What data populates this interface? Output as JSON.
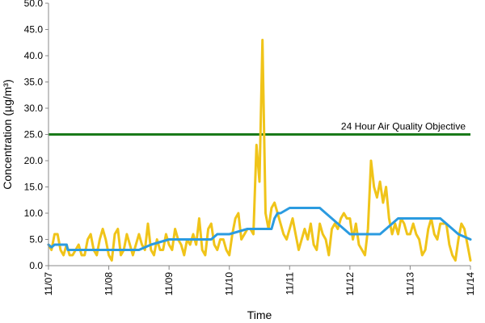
{
  "chart_data": {
    "type": "line",
    "xlabel": "Time",
    "ylabel": "Concentration (µg/m³)",
    "ylim": [
      0,
      50
    ],
    "y_ticks": [
      "0.0",
      "5.0",
      "10.0",
      "15.0",
      "20.0",
      "25.0",
      "30.0",
      "35.0",
      "40.0",
      "45.0",
      "50.0"
    ],
    "x_ticks": [
      "11/07",
      "11/08",
      "11/09",
      "11/10",
      "11/11",
      "11/12",
      "11/13",
      "11/14"
    ],
    "x_tick_values": [
      0,
      1,
      2,
      3,
      4,
      5,
      6,
      7
    ],
    "grid": false,
    "objective": {
      "label": "24 Hour Air Quality Objective",
      "value": 25,
      "color": "#1a7a1a"
    },
    "series": [
      {
        "color": "#f0c419",
        "x": [
          0.0,
          0.05,
          0.1,
          0.15,
          0.2,
          0.25,
          0.3,
          0.35,
          0.4,
          0.45,
          0.5,
          0.55,
          0.6,
          0.65,
          0.7,
          0.75,
          0.8,
          0.85,
          0.9,
          0.95,
          1.0,
          1.05,
          1.1,
          1.15,
          1.2,
          1.25,
          1.3,
          1.35,
          1.4,
          1.45,
          1.5,
          1.55,
          1.6,
          1.65,
          1.7,
          1.75,
          1.8,
          1.85,
          1.9,
          1.95,
          2.0,
          2.05,
          2.1,
          2.15,
          2.2,
          2.25,
          2.3,
          2.35,
          2.4,
          2.45,
          2.5,
          2.55,
          2.6,
          2.65,
          2.7,
          2.75,
          2.8,
          2.85,
          2.9,
          2.95,
          3.0,
          3.05,
          3.1,
          3.15,
          3.2,
          3.25,
          3.3,
          3.35,
          3.4,
          3.45,
          3.5,
          3.55,
          3.6,
          3.65,
          3.7,
          3.75,
          3.8,
          3.85,
          3.9,
          3.95,
          4.0,
          4.05,
          4.1,
          4.15,
          4.2,
          4.25,
          4.3,
          4.35,
          4.4,
          4.45,
          4.5,
          4.55,
          4.6,
          4.65,
          4.7,
          4.75,
          4.8,
          4.85,
          4.9,
          4.95,
          5.0,
          5.05,
          5.1,
          5.15,
          5.2,
          5.25,
          5.3,
          5.35,
          5.4,
          5.45,
          5.5,
          5.55,
          5.6,
          5.65,
          5.7,
          5.75,
          5.8,
          5.85,
          5.9,
          5.95,
          6.0,
          6.05,
          6.1,
          6.15,
          6.2,
          6.25,
          6.3,
          6.35,
          6.4,
          6.45,
          6.5,
          6.55,
          6.6,
          6.65,
          6.7,
          6.75,
          6.8,
          6.85,
          6.9,
          6.95,
          7.0
        ],
        "values": [
          4,
          3,
          6,
          6,
          3,
          2,
          4,
          2,
          2,
          3,
          4,
          2,
          2,
          5,
          6,
          3,
          2,
          5,
          7,
          5,
          2,
          1,
          6,
          7,
          2,
          3,
          6,
          4,
          2,
          4,
          6,
          4,
          3,
          8,
          3,
          2,
          5,
          3,
          3,
          6,
          4,
          3,
          7,
          5,
          4,
          2,
          5,
          4,
          6,
          4,
          9,
          3,
          2,
          7,
          8,
          4,
          3,
          5,
          5,
          3,
          2,
          6,
          9,
          10,
          5,
          6,
          7,
          7,
          6,
          23,
          16,
          43,
          10,
          7,
          11,
          12,
          10,
          8,
          6,
          5,
          7,
          9,
          6,
          3,
          5,
          7,
          5,
          8,
          4,
          3,
          8,
          6,
          5,
          2,
          7,
          8,
          7,
          9,
          10,
          9,
          9,
          5,
          8,
          4,
          3,
          2,
          7,
          20,
          15,
          13,
          16,
          12,
          15,
          9,
          6,
          8,
          6,
          9,
          8,
          6,
          6,
          8,
          6,
          5,
          2,
          3,
          7,
          9,
          6,
          5,
          8,
          8,
          8,
          4,
          2,
          1,
          5,
          8,
          7,
          4,
          1
        ]
      },
      {
        "color": "#2b9be0",
        "x": [
          0.0,
          0.05,
          0.1,
          0.3,
          0.32,
          0.5,
          0.8,
          1.0,
          1.3,
          1.5,
          1.7,
          2.0,
          2.5,
          2.7,
          2.8,
          3.0,
          3.3,
          3.7,
          3.75,
          3.8,
          3.85,
          4.0,
          4.5,
          4.6,
          4.7,
          4.8,
          4.9,
          5.0,
          5.5,
          5.6,
          5.7,
          5.8,
          6.0,
          6.2,
          6.5,
          6.6,
          6.8,
          7.0
        ],
        "values": [
          4,
          3.5,
          4,
          4,
          3,
          3,
          3,
          3,
          3,
          3,
          4,
          5,
          5,
          5,
          6,
          6,
          7,
          7,
          9,
          10,
          10,
          11,
          11,
          10,
          9,
          8,
          7,
          6,
          6,
          7,
          8,
          9,
          9,
          9,
          9,
          8,
          6,
          5
        ]
      }
    ]
  }
}
